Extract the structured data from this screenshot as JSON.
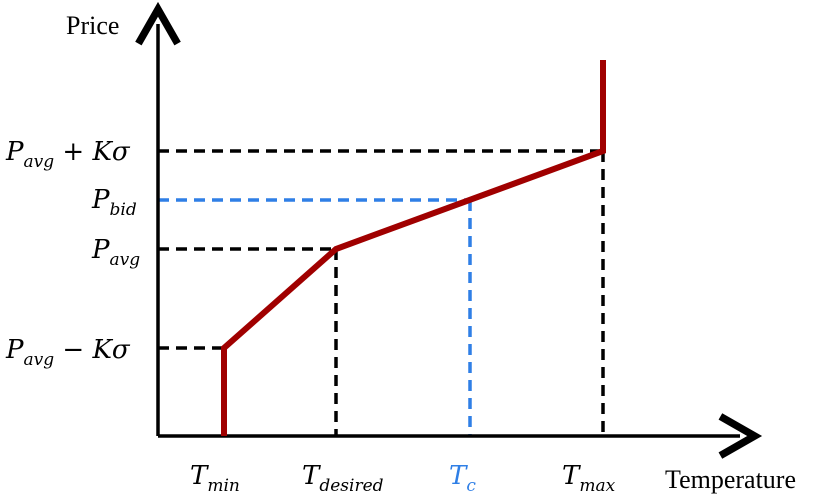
{
  "axes": {
    "y_label": "Price",
    "x_label": "Temperature"
  },
  "y_labels": {
    "p_high": {
      "base": "P",
      "sub": "avg",
      "rest": " + Kσ"
    },
    "p_bid": {
      "base": "P",
      "sub": "bid",
      "rest": ""
    },
    "p_avg": {
      "base": "P",
      "sub": "avg",
      "rest": ""
    },
    "p_low": {
      "base": "P",
      "sub": "avg",
      "rest": " − Kσ"
    }
  },
  "x_labels": {
    "t_min": {
      "base": "T",
      "sub": "min"
    },
    "t_desired": {
      "base": "T",
      "sub": "desired"
    },
    "t_c": {
      "base": "T",
      "sub": "c"
    },
    "t_max": {
      "base": "T",
      "sub": "max"
    }
  },
  "colors": {
    "curve": "#a00000",
    "guide": "#000000",
    "highlight": "#2f7fe6",
    "axis": "#000000"
  }
}
